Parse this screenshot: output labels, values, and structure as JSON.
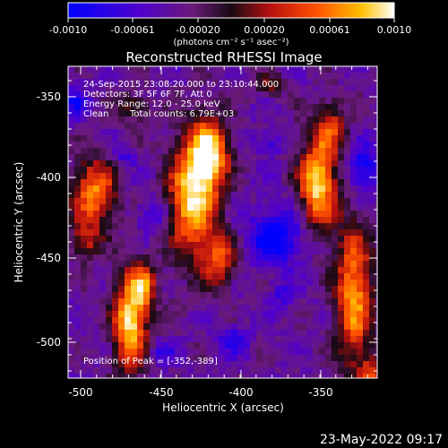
{
  "colorbar": {
    "ticks": [
      "-0.0010",
      "-0.00061",
      "-0.00020",
      "0.00020",
      "0.00061",
      "0.0010"
    ],
    "units": "(photons cm⁻² s⁻¹ asec⁻²)",
    "colors": [
      "#0000ff",
      "#5000cc",
      "#6a1a7a",
      "#1a0a14",
      "#b81010",
      "#ff5000",
      "#ffc000",
      "#ffffff"
    ]
  },
  "image": {
    "title": "Reconstructed RHESSI Image",
    "xlabel": "Heliocentric X (arcsec)",
    "ylabel": "Heliocentric Y (arcsec)",
    "x_ticks": [
      "-500",
      "-450",
      "-400",
      "-350"
    ],
    "y_ticks": [
      "-350",
      "-400",
      "-450",
      "-500"
    ],
    "xlim": [
      -512,
      -318
    ],
    "ylim": [
      -522,
      -328
    ],
    "annotations": {
      "line1": "24-Sep-2015 23:08:20.000 to 23:10:44.000",
      "line2": "Detectors: 3F 5F 6F 7F, Att 0",
      "line3": "Energy Range: 12.0 - 25.0 keV",
      "line4_method": "Clean",
      "line4_counts": "Total counts: 6.79E+03",
      "peak": "Position of Peak = [-352,-389]"
    }
  },
  "footer": {
    "timestamp": "23-May-2022 09:17"
  }
}
